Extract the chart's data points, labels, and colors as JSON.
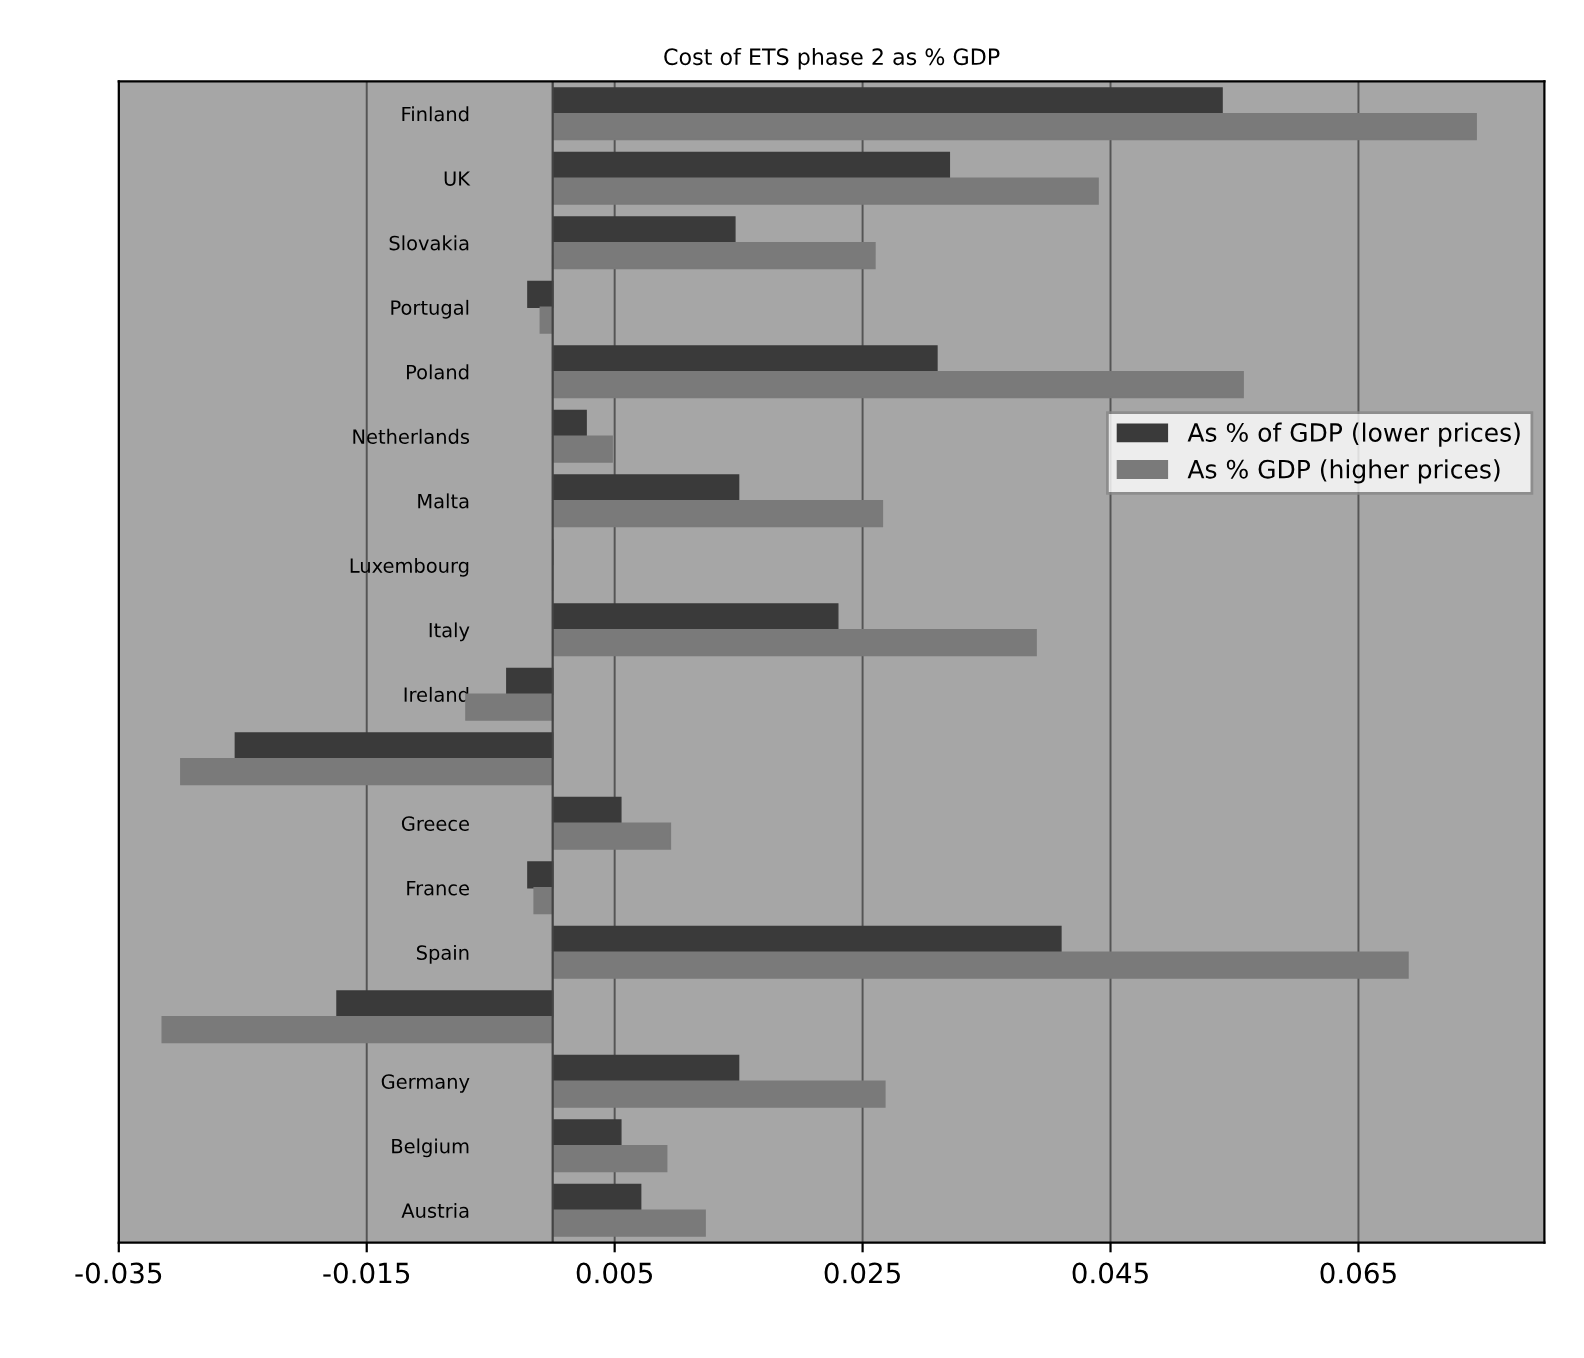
{
  "chart_data": {
    "type": "bar",
    "orientation": "horizontal",
    "title": "Cost of ETS phase 2 as % GDP",
    "categories": [
      "Finland",
      "UK",
      "Slovakia",
      "Portugal",
      "Poland",
      "Netherlands",
      "Malta",
      "Luxembourg",
      "Italy",
      "Ireland",
      null,
      "Greece",
      "France",
      "Spain",
      null,
      "Germany",
      "Belgium",
      "Austria"
    ],
    "series": [
      {
        "name": "As % of GDP (lower prices)",
        "color": "#3a3a3a",
        "values": [
          0.054,
          0.032,
          0.0147,
          -0.002,
          0.031,
          0.0027,
          0.015,
          0.0,
          0.023,
          -0.0037,
          -0.0256,
          0.0055,
          -0.002,
          0.041,
          -0.0174,
          0.015,
          0.0055,
          0.0071
        ]
      },
      {
        "name": "As % GDP (higher prices)",
        "color": "#7a7a7a",
        "values": [
          0.0745,
          0.044,
          0.026,
          -0.001,
          0.0557,
          0.0048,
          0.0266,
          0.0,
          0.039,
          -0.007,
          -0.03,
          0.0095,
          -0.0015,
          0.069,
          -0.0315,
          0.0268,
          0.0092,
          0.0123
        ]
      }
    ],
    "xlim": [
      -0.035,
      0.08
    ],
    "xticks": [
      {
        "value": -0.035,
        "label": "-0.035"
      },
      {
        "value": -0.015,
        "label": "-0.015"
      },
      {
        "value": 0.005,
        "label": "0.005"
      },
      {
        "value": 0.025,
        "label": "0.025"
      },
      {
        "value": 0.045,
        "label": "0.045"
      },
      {
        "value": 0.065,
        "label": "0.065"
      }
    ],
    "grid": "x",
    "legend": "right"
  }
}
